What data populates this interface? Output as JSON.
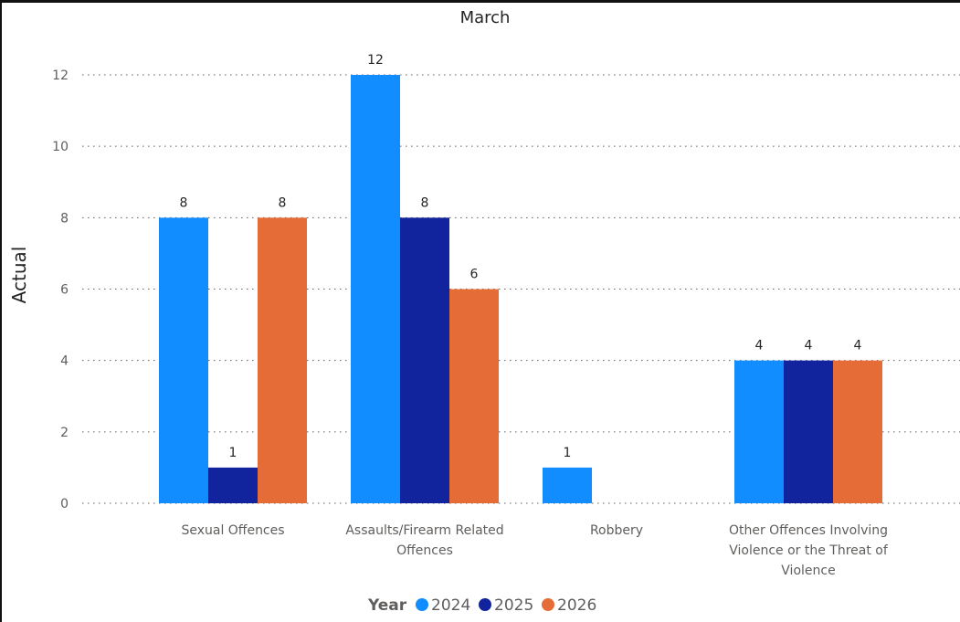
{
  "chart_data": {
    "type": "bar",
    "title": "March",
    "ylabel": "Actual",
    "xlabel": "",
    "ylim": [
      0,
      12
    ],
    "yticks": [
      0,
      2,
      4,
      6,
      8,
      10,
      12
    ],
    "grid": true,
    "legend": {
      "title": "Year",
      "placement": "bottom"
    },
    "categories": [
      [
        "Sexual Offences"
      ],
      [
        "Assaults/Firearm Related",
        "Offences"
      ],
      [
        "Robbery"
      ],
      [
        "Other Offences Involving",
        "Violence or the Threat of",
        "Violence"
      ]
    ],
    "series": [
      {
        "name": "2024",
        "color": "#118DFF",
        "values": [
          8,
          12,
          1,
          4
        ]
      },
      {
        "name": "2025",
        "color": "#12239E",
        "values": [
          1,
          8,
          null,
          4
        ]
      },
      {
        "name": "2026",
        "color": "#E66C37",
        "values": [
          8,
          6,
          null,
          4
        ]
      }
    ]
  }
}
